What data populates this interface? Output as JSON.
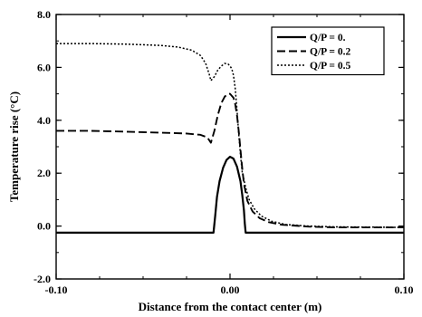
{
  "chart_data": {
    "type": "line",
    "xlabel": "Distance from the contact center (m)",
    "ylabel": "Temperature rise (°C)",
    "xlim": [
      -0.1,
      0.1
    ],
    "ylim": [
      -2.0,
      8.0
    ],
    "x_ticks": [
      -0.1,
      0.0,
      0.1
    ],
    "x_tick_labels": [
      "-0.10",
      "0.00",
      "0.10"
    ],
    "y_ticks": [
      -2.0,
      0.0,
      2.0,
      4.0,
      6.0,
      8.0
    ],
    "y_tick_labels": [
      "-2.0",
      "0.0",
      "2.0",
      "4.0",
      "6.0",
      "8.0"
    ],
    "grid": false,
    "legend_position": "top-right",
    "series": [
      {
        "name": "Q/P = 0.",
        "style": "solid",
        "points": [
          [
            -0.1,
            -0.25
          ],
          [
            -0.06,
            -0.25
          ],
          [
            -0.0095,
            -0.25
          ],
          [
            -0.0085,
            0.4
          ],
          [
            -0.0075,
            1.1
          ],
          [
            -0.006,
            1.7
          ],
          [
            -0.004,
            2.2
          ],
          [
            -0.002,
            2.5
          ],
          [
            0.0,
            2.62
          ],
          [
            0.002,
            2.55
          ],
          [
            0.004,
            2.25
          ],
          [
            0.006,
            1.7
          ],
          [
            0.007,
            1.2
          ],
          [
            0.008,
            0.6
          ],
          [
            0.0085,
            0.1
          ],
          [
            0.009,
            -0.25
          ],
          [
            0.05,
            -0.25
          ],
          [
            0.1,
            -0.25
          ]
        ]
      },
      {
        "name": "Q/P = 0.2",
        "style": "dashed",
        "points": [
          [
            -0.1,
            3.6
          ],
          [
            -0.08,
            3.6
          ],
          [
            -0.06,
            3.57
          ],
          [
            -0.04,
            3.53
          ],
          [
            -0.025,
            3.5
          ],
          [
            -0.017,
            3.45
          ],
          [
            -0.013,
            3.35
          ],
          [
            -0.011,
            3.15
          ],
          [
            -0.009,
            3.6
          ],
          [
            -0.007,
            4.2
          ],
          [
            -0.005,
            4.65
          ],
          [
            -0.003,
            4.9
          ],
          [
            -0.001,
            5.0
          ],
          [
            0.0,
            5.0
          ],
          [
            0.002,
            4.85
          ],
          [
            0.003,
            4.6
          ],
          [
            0.004,
            4.2
          ],
          [
            0.005,
            3.6
          ],
          [
            0.006,
            2.9
          ],
          [
            0.007,
            2.2
          ],
          [
            0.008,
            1.6
          ],
          [
            0.01,
            0.95
          ],
          [
            0.013,
            0.55
          ],
          [
            0.017,
            0.3
          ],
          [
            0.022,
            0.15
          ],
          [
            0.03,
            0.05
          ],
          [
            0.045,
            -0.02
          ],
          [
            0.06,
            -0.05
          ],
          [
            0.1,
            -0.05
          ]
        ]
      },
      {
        "name": "Q/P = 0.5",
        "style": "dotted",
        "points": [
          [
            -0.1,
            6.9
          ],
          [
            -0.08,
            6.9
          ],
          [
            -0.06,
            6.88
          ],
          [
            -0.04,
            6.83
          ],
          [
            -0.03,
            6.77
          ],
          [
            -0.022,
            6.65
          ],
          [
            -0.017,
            6.45
          ],
          [
            -0.014,
            6.15
          ],
          [
            -0.012,
            5.75
          ],
          [
            -0.011,
            5.5
          ],
          [
            -0.009,
            5.65
          ],
          [
            -0.007,
            5.9
          ],
          [
            -0.005,
            6.05
          ],
          [
            -0.003,
            6.15
          ],
          [
            -0.001,
            6.12
          ],
          [
            0.0,
            6.05
          ],
          [
            0.001,
            5.95
          ],
          [
            0.002,
            5.7
          ],
          [
            0.003,
            5.2
          ],
          [
            0.004,
            4.4
          ],
          [
            0.005,
            3.5
          ],
          [
            0.006,
            2.7
          ],
          [
            0.007,
            2.05
          ],
          [
            0.009,
            1.45
          ],
          [
            0.011,
            1.0
          ],
          [
            0.014,
            0.65
          ],
          [
            0.018,
            0.38
          ],
          [
            0.024,
            0.18
          ],
          [
            0.032,
            0.06
          ],
          [
            0.045,
            0.0
          ],
          [
            0.06,
            -0.03
          ],
          [
            0.1,
            -0.05
          ]
        ]
      }
    ]
  }
}
